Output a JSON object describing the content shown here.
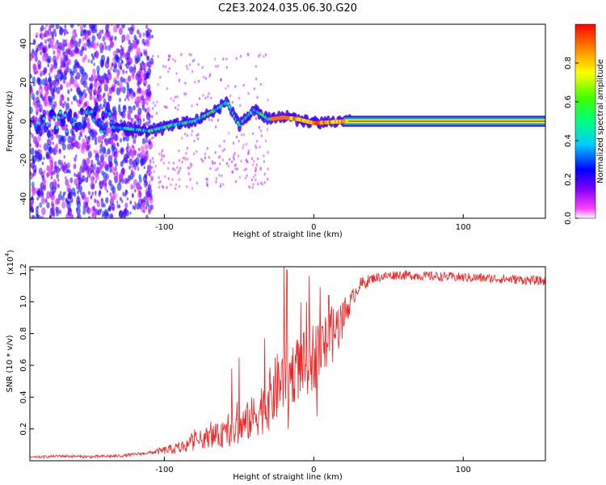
{
  "figure": {
    "title": "C2E3.2024.035.06.30.G20"
  },
  "chart_data": [
    {
      "type": "heatmap",
      "title": "",
      "xlabel": "Height of straight line (km)",
      "ylabel": "Frequency (Hz)",
      "xlim": [
        -190,
        155
      ],
      "ylim": [
        -50,
        50
      ],
      "x_ticks": [
        "-100",
        "0",
        "100"
      ],
      "y_ticks": [
        "-40",
        "-20",
        "0",
        "20",
        "40"
      ],
      "colorbar": {
        "label": "Normalized spectral amplitude",
        "range": [
          0.0,
          1.0
        ],
        "ticks": [
          "0.0",
          "0.2",
          "0.4",
          "0.6",
          "0.8"
        ],
        "colormap": "rainbow"
      },
      "ridge": {
        "description_points": [
          {
            "x": -135,
            "y": -3
          },
          {
            "x": -110,
            "y": -5
          },
          {
            "x": -95,
            "y": -2
          },
          {
            "x": -80,
            "y": 0
          },
          {
            "x": -65,
            "y": 6
          },
          {
            "x": -58,
            "y": 10
          },
          {
            "x": -50,
            "y": -2
          },
          {
            "x": -40,
            "y": 6
          },
          {
            "x": -30,
            "y": 1
          },
          {
            "x": -20,
            "y": 2
          },
          {
            "x": -10,
            "y": 1
          },
          {
            "x": 0,
            "y": -1
          },
          {
            "x": 20,
            "y": 0
          },
          {
            "x": 155,
            "y": 0
          }
        ]
      },
      "grid": false
    },
    {
      "type": "line",
      "title": "",
      "xlabel": "Height of straight line (km)",
      "ylabel": "SNR (10 * v/v)",
      "y_multiplier": "(x10",
      "y_multiplier_exp": "4",
      "y_multiplier_close": ")",
      "xlim": [
        -190,
        155
      ],
      "ylim": [
        0.0,
        1.22
      ],
      "x_ticks": [
        "-100",
        "0",
        "100"
      ],
      "y_ticks": [
        "0.2",
        "0.4",
        "0.6",
        "0.8",
        "1.0",
        "1.2"
      ],
      "series": [
        {
          "color": "#ee2222",
          "envelope": [
            {
              "x": -190,
              "y": 0.02
            },
            {
              "x": -170,
              "y": 0.03
            },
            {
              "x": -150,
              "y": 0.025
            },
            {
              "x": -130,
              "y": 0.03
            },
            {
              "x": -110,
              "y": 0.05
            },
            {
              "x": -90,
              "y": 0.08
            },
            {
              "x": -80,
              "y": 0.12
            },
            {
              "x": -70,
              "y": 0.15
            },
            {
              "x": -60,
              "y": 0.16
            },
            {
              "x": -50,
              "y": 0.2
            },
            {
              "x": -40,
              "y": 0.28
            },
            {
              "x": -30,
              "y": 0.38
            },
            {
              "x": -22,
              "y": 0.5
            },
            {
              "x": -15,
              "y": 0.55
            },
            {
              "x": -5,
              "y": 0.62
            },
            {
              "x": 5,
              "y": 0.7
            },
            {
              "x": 15,
              "y": 0.82
            },
            {
              "x": 22,
              "y": 0.95
            },
            {
              "x": 30,
              "y": 1.1
            },
            {
              "x": 40,
              "y": 1.15
            },
            {
              "x": 55,
              "y": 1.17
            },
            {
              "x": 80,
              "y": 1.16
            },
            {
              "x": 110,
              "y": 1.15
            },
            {
              "x": 135,
              "y": 1.14
            },
            {
              "x": 155,
              "y": 1.13
            }
          ],
          "noise_profile": [
            {
              "x": -190,
              "noise": 0.008
            },
            {
              "x": -110,
              "noise": 0.01
            },
            {
              "x": -90,
              "noise": 0.04
            },
            {
              "x": -60,
              "noise": 0.08
            },
            {
              "x": -40,
              "noise": 0.14
            },
            {
              "x": -25,
              "noise": 0.22
            },
            {
              "x": -15,
              "noise": 0.2
            },
            {
              "x": 0,
              "noise": 0.22
            },
            {
              "x": 15,
              "noise": 0.18
            },
            {
              "x": 25,
              "noise": 0.06
            },
            {
              "x": 40,
              "noise": 0.03
            },
            {
              "x": 155,
              "noise": 0.03
            }
          ],
          "spikes": [
            {
              "x": -55,
              "y": 0.58
            },
            {
              "x": -50,
              "y": 0.65
            },
            {
              "x": -33,
              "y": 0.77
            },
            {
              "x": -20,
              "y": 1.22
            },
            {
              "x": -18,
              "y": 1.2
            },
            {
              "x": -5,
              "y": 1.0
            },
            {
              "x": 10,
              "y": 1.04
            },
            {
              "x": 2,
              "y": 0.28
            },
            {
              "x": -17,
              "y": 0.2
            }
          ]
        }
      ],
      "grid": false
    }
  ]
}
